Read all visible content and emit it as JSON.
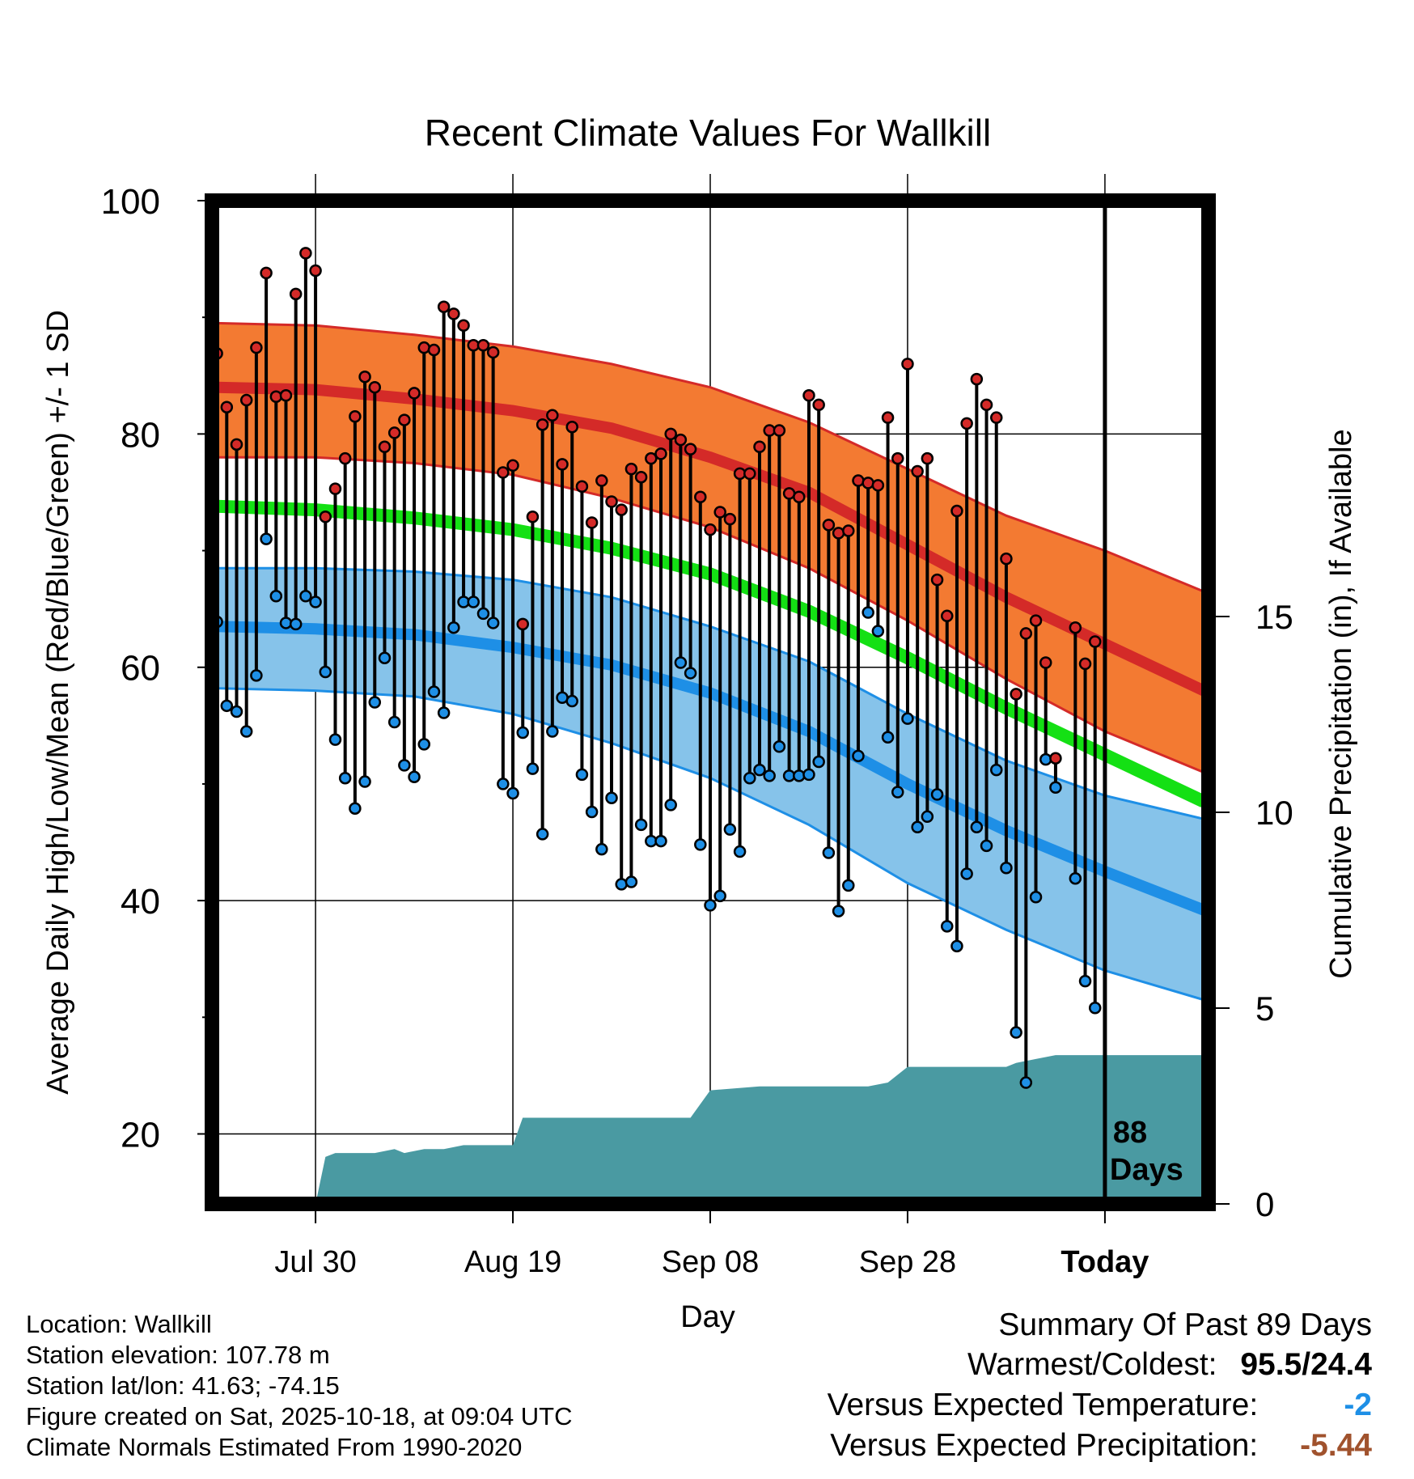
{
  "chart_data": {
    "type": "line",
    "title": "Recent Climate Values For Wallkill",
    "xlabel": "Day",
    "ylabel": "Average Daily High/Low/Mean (Red/Blue/Green) +/- 1 SD",
    "y2label": "Cumulative Precipitation (in), If Available",
    "ylim": [
      14,
      100
    ],
    "y2lim": [
      0,
      25
    ],
    "yticks": [
      "20",
      "40",
      "60",
      "80",
      "100"
    ],
    "y2ticks": [
      "0",
      "5",
      "10",
      "15"
    ],
    "xlim": [
      -0.5,
      100.5
    ],
    "xticks": [
      {
        "label": "Jul 30",
        "day": 10
      },
      {
        "label": "Aug 19",
        "day": 30
      },
      {
        "label": "Sep 08",
        "day": 50
      },
      {
        "label": "Sep 28",
        "day": 70
      },
      {
        "label": "Today",
        "day": 90
      }
    ],
    "today_day": 90,
    "days_label": [
      "88",
      "Days"
    ],
    "normals": {
      "days": [
        0,
        10,
        20,
        30,
        40,
        50,
        60,
        70,
        80,
        90,
        100
      ],
      "high_mean": [
        84.0,
        83.8,
        83.0,
        82.0,
        80.5,
        78.0,
        75.0,
        70.5,
        66.0,
        62.0,
        58.0
      ],
      "high_upper": [
        89.5,
        89.3,
        88.5,
        87.5,
        86.0,
        84.0,
        81.0,
        77.0,
        73.0,
        70.0,
        66.5
      ],
      "high_lower": [
        78.0,
        78.0,
        77.5,
        76.5,
        74.5,
        72.0,
        68.5,
        64.0,
        59.0,
        54.5,
        51.0
      ],
      "mean": [
        73.8,
        73.5,
        72.8,
        71.8,
        70.2,
        68.0,
        64.8,
        60.8,
        56.5,
        52.5,
        48.5
      ],
      "low_mean": [
        63.5,
        63.3,
        62.8,
        61.7,
        60.2,
        57.8,
        54.5,
        50.0,
        46.0,
        42.5,
        39.2
      ],
      "low_upper": [
        68.5,
        68.5,
        68.2,
        67.5,
        66.0,
        63.5,
        60.5,
        56.0,
        52.0,
        49.0,
        47.0
      ],
      "low_lower": [
        58.2,
        58.0,
        57.5,
        56.0,
        53.5,
        50.5,
        46.5,
        41.5,
        37.5,
        34.0,
        31.5
      ]
    },
    "daily_high": [
      86.9,
      82.3,
      79.1,
      82.9,
      87.4,
      93.8,
      83.2,
      83.3,
      92.0,
      95.5,
      94.0,
      72.9,
      75.3,
      77.9,
      81.5,
      84.9,
      84.0,
      78.9,
      80.1,
      81.2,
      83.5,
      87.4,
      87.2,
      90.9,
      90.3,
      89.3,
      87.6,
      87.6,
      87.0,
      76.7,
      77.3,
      63.7,
      72.9,
      80.8,
      81.6,
      77.4,
      80.6,
      75.5,
      72.4,
      76.0,
      74.2,
      73.5,
      77.0,
      76.3,
      77.9,
      78.3,
      80.0,
      79.5,
      78.7,
      74.6,
      71.8,
      73.3,
      72.7,
      76.6,
      76.6,
      78.9,
      80.3,
      80.3,
      74.9,
      74.6,
      83.3,
      82.5,
      72.2,
      71.5,
      71.7,
      76.0,
      75.8,
      75.6,
      81.4,
      77.9,
      86.0,
      76.8,
      77.9,
      67.5,
      64.4,
      73.4,
      80.9,
      84.7,
      82.5,
      81.4,
      69.3,
      57.7,
      62.9,
      64.0,
      60.4,
      52.2,
      null,
      63.4,
      60.3,
      62.2
    ],
    "daily_low": [
      63.9,
      56.7,
      56.2,
      54.5,
      59.3,
      71.0,
      66.1,
      63.8,
      63.7,
      66.1,
      65.6,
      59.6,
      53.8,
      50.5,
      47.9,
      50.2,
      57.0,
      60.8,
      55.3,
      51.6,
      50.6,
      53.4,
      57.9,
      56.1,
      63.4,
      65.6,
      65.6,
      64.6,
      63.8,
      50.0,
      49.2,
      54.4,
      51.3,
      45.7,
      54.5,
      57.4,
      57.1,
      50.8,
      47.6,
      44.4,
      48.8,
      41.4,
      41.6,
      46.5,
      45.1,
      45.1,
      48.2,
      60.4,
      59.5,
      44.8,
      39.6,
      40.4,
      46.1,
      44.2,
      50.5,
      51.2,
      50.7,
      53.2,
      50.7,
      50.7,
      50.8,
      51.9,
      44.1,
      39.1,
      41.3,
      52.4,
      64.7,
      63.1,
      54.0,
      49.3,
      55.6,
      46.3,
      47.2,
      49.1,
      37.8,
      36.1,
      42.3,
      46.3,
      44.7,
      51.2,
      42.8,
      28.7,
      24.4,
      40.3,
      52.1,
      49.7,
      null,
      41.9,
      33.1,
      30.8
    ],
    "cumulative_precipitation": {
      "days": [
        10,
        11,
        12,
        14,
        16,
        18,
        19,
        21,
        23,
        25,
        27,
        29,
        30,
        31,
        40,
        45,
        47,
        48,
        50,
        55,
        60,
        65,
        66,
        68,
        70,
        75,
        80,
        81,
        83,
        85,
        100
      ],
      "inches": [
        0,
        1.2,
        1.3,
        1.3,
        1.3,
        1.4,
        1.3,
        1.4,
        1.4,
        1.5,
        1.5,
        1.5,
        1.5,
        2.2,
        2.2,
        2.2,
        2.2,
        2.2,
        2.9,
        3.0,
        3.0,
        3.0,
        3.0,
        3.1,
        3.5,
        3.5,
        3.5,
        3.6,
        3.7,
        3.8,
        3.8
      ]
    }
  },
  "info": {
    "location": "Location: Wallkill",
    "elevation": "Station elevation: 107.78 m",
    "latlon": "Station lat/lon: 41.63; -74.15",
    "created": "Figure created on Sat, 2025-10-18, at 09:04 UTC",
    "normals": "Climate Normals Estimated From 1990-2020"
  },
  "summary": {
    "heading": "Summary Of Past 89 Days",
    "warmest_label": "Warmest/Coldest:",
    "warmest_value": "95.5/24.4",
    "temp_label": "Versus Expected Temperature:",
    "temp_value": "-2",
    "temp_color": "#1e8fe6",
    "precip_label": "Versus Expected Precipitation:",
    "precip_value": "-5.44",
    "precip_color": "#a0522d"
  },
  "colors": {
    "high_band": "#f37a32",
    "high_line": "#d42a28",
    "mean_line": "#14e014",
    "low_band": "#86c3ea",
    "low_line": "#1e8fe6",
    "precip": "#4a9aa2",
    "high_dot": "#d42a28",
    "low_dot": "#1e8fe6"
  }
}
